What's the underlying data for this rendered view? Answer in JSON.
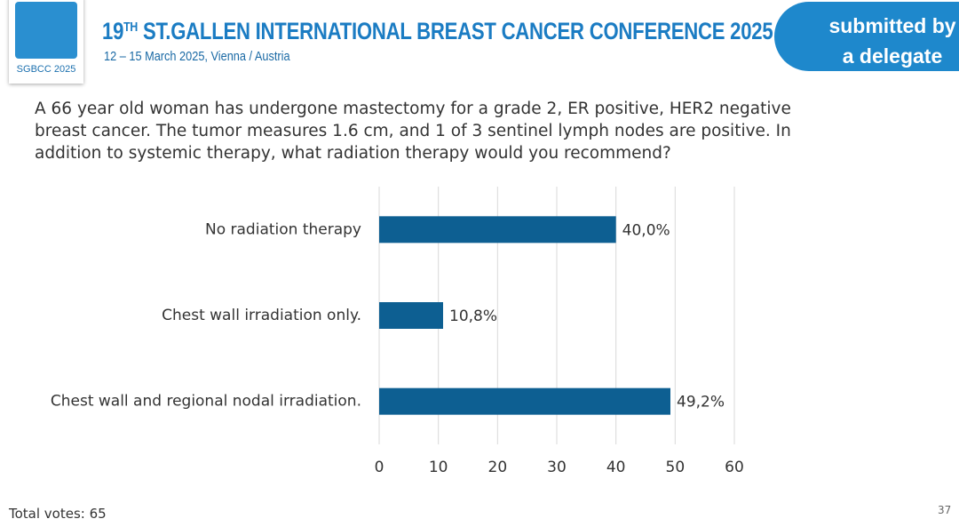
{
  "header": {
    "logo": "SGBCC 2025",
    "edition": "19",
    "edition_suffix": "TH",
    "conference": "ST.GALLEN INTERNATIONAL BREAST CANCER CONFERENCE 2025",
    "dates": "12 – 15 March 2025, Vienna / Austria",
    "badge": [
      "submitted by",
      "a delegate"
    ]
  },
  "chart_data": {
    "type": "hbar",
    "title": "A 66 year old woman has undergone mastectomy for a grade 2, ER positive, HER2 negative breast cancer.  The tumor measures 1.6 cm, and 1 of 3 sentinel lymph nodes are positive.  In addition to systemic therapy, what radiation therapy would you recommend?",
    "categories": [
      "No radiation therapy",
      "Chest wall irradiation only.",
      "Chest wall and regional nodal irradiation."
    ],
    "values": [
      40.0,
      10.8,
      49.2
    ],
    "value_labels": [
      "40,0%",
      "10,8%",
      "49,2%"
    ],
    "color": "#0d5f92",
    "xlim": [
      0,
      60
    ],
    "xticks": [
      0,
      10,
      20,
      30,
      40,
      50,
      60
    ],
    "grid": true
  },
  "footer": {
    "votes": "Total votes: 65",
    "page": "37"
  }
}
